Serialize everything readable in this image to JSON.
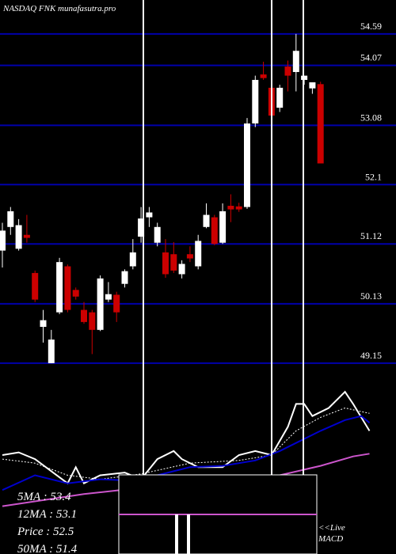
{
  "chart_data": [
    {
      "type": "candlestick",
      "title": "NASDAQ FNK munafasutra.pro",
      "ylim": [
        48.56,
        55.15
      ],
      "yticks": [
        54.59,
        54.07,
        53.08,
        52.1,
        51.12,
        50.13,
        49.15
      ],
      "grid": true,
      "grid_color": "#0000aa",
      "up_color": "#ffffff",
      "down_color": "#cc0000",
      "series": {
        "open": [
          51.01,
          51.4,
          51.04,
          51.27,
          50.64,
          49.75,
          49.15,
          49.99,
          50.75,
          50.36,
          50.03,
          49.99,
          49.7,
          50.2,
          50.28,
          50.46,
          50.75,
          51.24,
          51.56,
          51.14,
          50.98,
          50.95,
          50.62,
          50.95,
          50.75,
          51.4,
          51.56,
          51.14,
          51.75,
          51.74,
          51.73,
          53.11,
          53.92,
          53.7,
          53.37,
          54.05,
          53.96,
          53.83,
          53.69,
          53.76
        ],
        "high": [
          51.47,
          51.73,
          51.53,
          51.6,
          50.68,
          50.03,
          49.7,
          50.89,
          50.78,
          50.4,
          50.16,
          50.03,
          50.6,
          50.49,
          50.33,
          50.7,
          51.2,
          51.73,
          51.73,
          51.47,
          51.2,
          51.15,
          50.85,
          51.08,
          51.27,
          51.79,
          51.6,
          51.79,
          51.94,
          51.8,
          53.2,
          53.9,
          54.13,
          53.75,
          53.75,
          54.15,
          54.59,
          53.9,
          53.75,
          53.8
        ],
        "low": [
          50.73,
          51.27,
          51.01,
          51.14,
          50.16,
          49.49,
          49.15,
          49.96,
          49.99,
          50.2,
          49.8,
          49.3,
          49.68,
          50.16,
          49.83,
          50.4,
          50.7,
          51.14,
          51.4,
          51.08,
          50.56,
          50.64,
          50.55,
          50.82,
          50.7,
          51.38,
          51.1,
          51.12,
          51.48,
          51.65,
          51.7,
          53.05,
          53.83,
          53.2,
          53.3,
          53.64,
          53.64,
          53.75,
          53.6,
          52.45
        ],
        "close": [
          51.34,
          51.66,
          51.43,
          51.22,
          50.2,
          49.86,
          49.54,
          50.82,
          50.03,
          50.25,
          49.83,
          49.7,
          50.55,
          50.29,
          49.99,
          50.67,
          50.98,
          51.54,
          51.64,
          51.4,
          50.62,
          50.68,
          50.79,
          50.88,
          51.17,
          51.6,
          51.12,
          51.66,
          51.69,
          51.69,
          53.11,
          53.83,
          53.86,
          53.24,
          53.7,
          53.9,
          54.31,
          53.9,
          53.79,
          52.45
        ]
      },
      "legend": [
        "5MA : 53.4",
        "12MA : 53.1",
        "Price : 52.5",
        "50MA : 51.4"
      ],
      "live_label": [
        "<<Live",
        "MACD"
      ]
    },
    {
      "type": "line",
      "ylim": [
        0,
        100
      ],
      "series": [
        {
          "color": "#ffffff",
          "style": "solid",
          "x": [
            0,
            2,
            4,
            6,
            8,
            9,
            10,
            12,
            15,
            17,
            19,
            21,
            22,
            24,
            27,
            29,
            31,
            33,
            35,
            36,
            37,
            38,
            40,
            42,
            43,
            45
          ],
          "values": [
            50,
            52,
            47,
            38,
            29,
            41,
            29,
            35,
            37,
            32,
            47,
            53,
            47,
            41,
            41,
            50,
            53,
            50,
            71,
            88,
            88,
            79,
            85,
            97,
            88,
            68
          ]
        },
        {
          "color": "#ffffff",
          "style": "dotted",
          "x": [
            0,
            4,
            8,
            12,
            17,
            23,
            29,
            33,
            36,
            39,
            42,
            45
          ],
          "values": [
            47,
            44,
            35,
            32,
            36,
            44,
            46,
            50,
            68,
            78,
            85,
            81
          ]
        },
        {
          "color": "#0000cc",
          "style": "solid",
          "x": [
            0,
            4,
            8,
            12,
            16,
            19,
            23,
            27,
            31,
            34,
            36,
            39,
            42,
            44,
            45
          ],
          "values": [
            24,
            35,
            29,
            32,
            31,
            35,
            41,
            42,
            46,
            53,
            59,
            68,
            76,
            79,
            74
          ]
        },
        {
          "color": "#cc55cc",
          "style": "solid",
          "x": [
            0,
            10,
            16,
            23,
            29,
            34,
            39,
            43,
            45
          ],
          "values": [
            12,
            21,
            25,
            25,
            28,
            35,
            42,
            49,
            51
          ]
        }
      ]
    }
  ]
}
